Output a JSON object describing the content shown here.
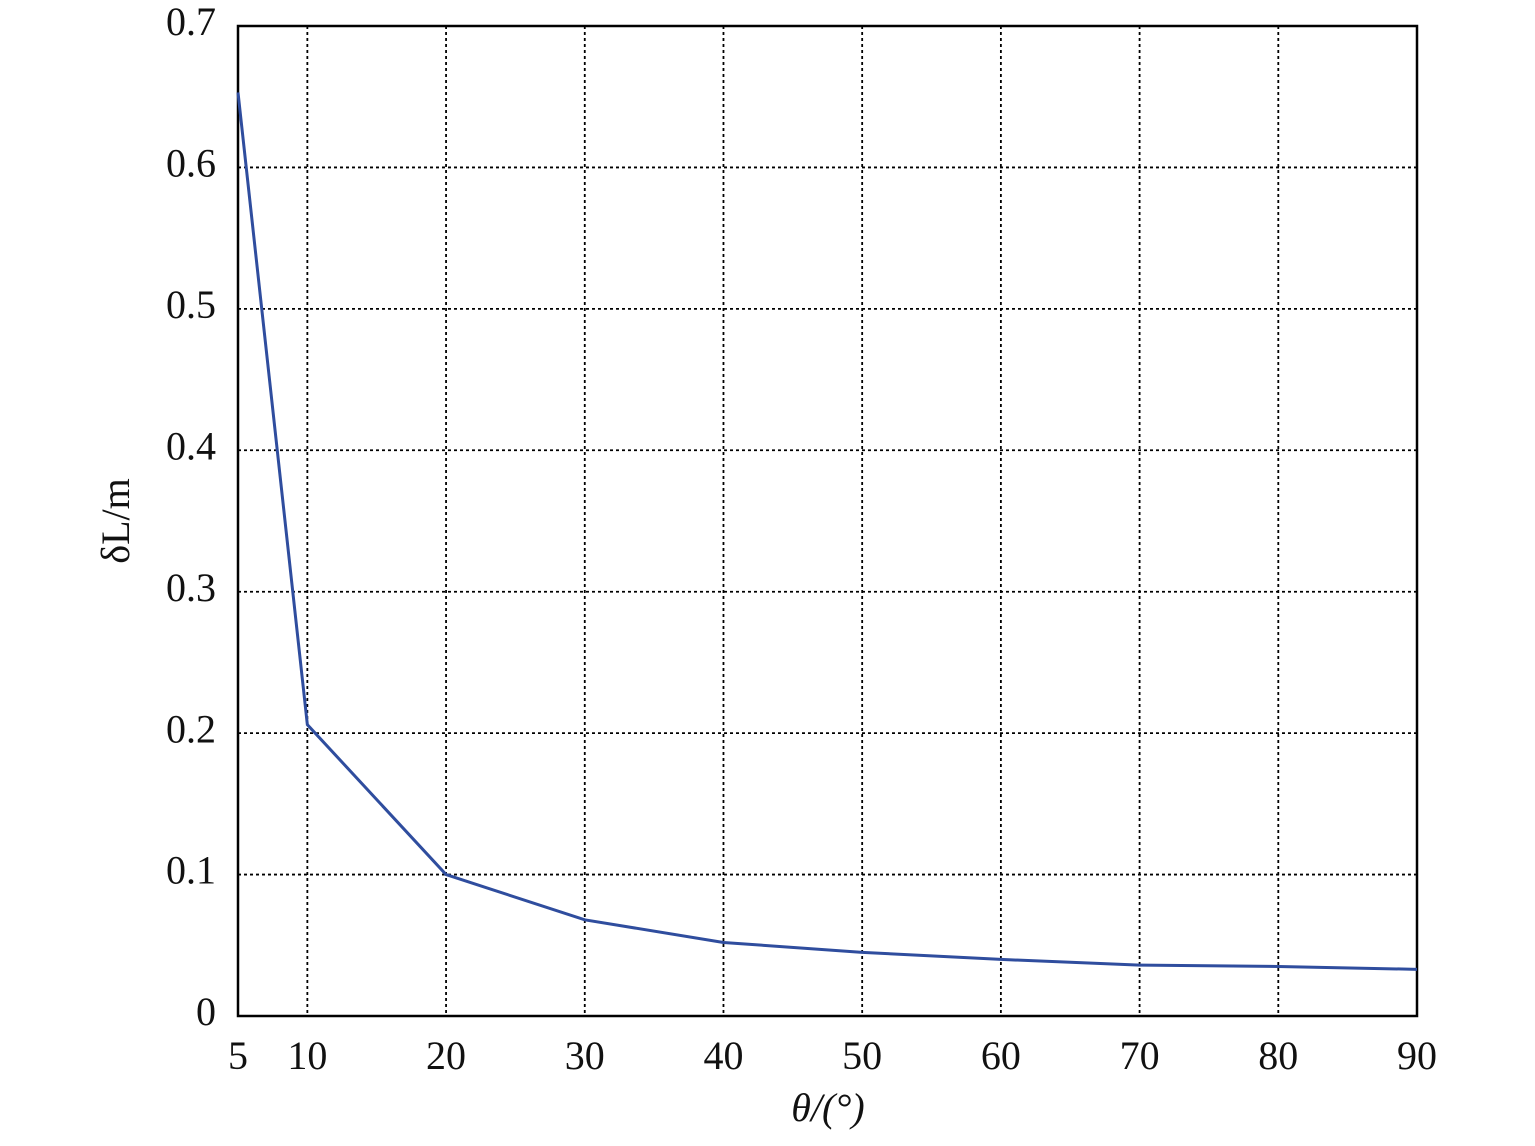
{
  "chart_data": {
    "type": "line",
    "x_label": "θ/(°)",
    "y_label": "δL/m",
    "x": [
      5,
      10,
      20,
      30,
      40,
      50,
      60,
      70,
      80,
      90
    ],
    "series": [
      {
        "color": "#2f4d9e",
        "values": [
          0.653,
          0.206,
          0.1,
          0.068,
          0.052,
          0.045,
          0.04,
          0.036,
          0.035,
          0.033
        ]
      }
    ],
    "xlim": [
      5,
      90
    ],
    "xticks": [
      5,
      10,
      20,
      30,
      40,
      50,
      60,
      70,
      80,
      90
    ],
    "ylim": [
      0,
      0.7
    ],
    "yticks": [
      0,
      0.1,
      0.2,
      0.3,
      0.4,
      0.5,
      0.6,
      0.7
    ],
    "grid": true
  }
}
